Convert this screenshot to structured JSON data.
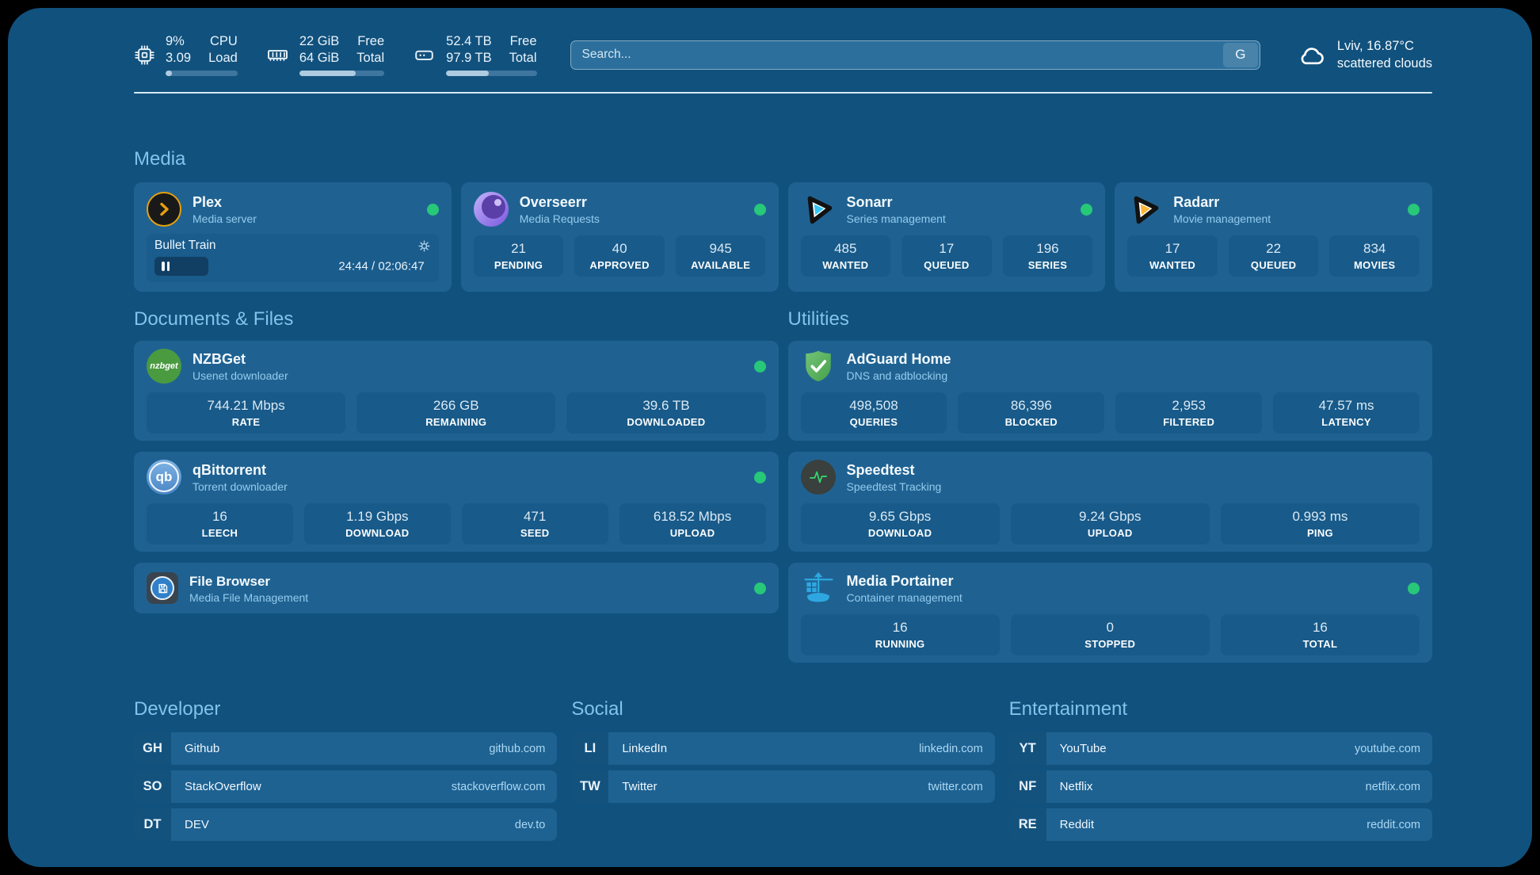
{
  "colors": {
    "background": "#11517D",
    "card": "#1F6292",
    "accent_header": "#80C3EB",
    "online_dot": "#27C878"
  },
  "topbar": {
    "stats": [
      {
        "icon": "cpu-icon",
        "value_top": "9%",
        "value_bottom": "3.09",
        "label_top": "CPU",
        "label_bottom": "Load",
        "progress": 9
      },
      {
        "icon": "memory-icon",
        "value_top": "22 GiB",
        "value_bottom": "64 GiB",
        "label_top": "Free",
        "label_bottom": "Total",
        "progress": 66
      },
      {
        "icon": "storage-icon",
        "value_top": "52.4 TB",
        "value_bottom": "97.9 TB",
        "label_top": "Free",
        "label_bottom": "Total",
        "progress": 47
      }
    ],
    "search": {
      "placeholder": "Search...",
      "provider_button": "G"
    },
    "weather": {
      "location": "Lviv, 16.87°C",
      "condition": "scattered clouds"
    }
  },
  "media": {
    "section_title": "Media",
    "plex": {
      "title": "Plex",
      "subtitle": "Media server",
      "online": true,
      "now_playing": {
        "title": "Bullet Train",
        "time_display": "24:44 / 02:06:47",
        "progress": 19.5
      }
    },
    "overseerr": {
      "title": "Overseerr",
      "subtitle": "Media Requests",
      "online": true,
      "stats": [
        {
          "value": "21",
          "label": "PENDING"
        },
        {
          "value": "40",
          "label": "APPROVED"
        },
        {
          "value": "945",
          "label": "AVAILABLE"
        }
      ]
    },
    "sonarr": {
      "title": "Sonarr",
      "subtitle": "Series management",
      "online": true,
      "stats": [
        {
          "value": "485",
          "label": "WANTED"
        },
        {
          "value": "17",
          "label": "QUEUED"
        },
        {
          "value": "196",
          "label": "SERIES"
        }
      ]
    },
    "radarr": {
      "title": "Radarr",
      "subtitle": "Movie management",
      "online": true,
      "stats": [
        {
          "value": "17",
          "label": "WANTED"
        },
        {
          "value": "22",
          "label": "QUEUED"
        },
        {
          "value": "834",
          "label": "MOVIES"
        }
      ]
    }
  },
  "documents": {
    "section_title": "Documents & Files",
    "nzbget": {
      "title": "NZBGet",
      "subtitle": "Usenet downloader",
      "icon_text": "nzbget",
      "online": true,
      "stats": [
        {
          "value": "744.21 Mbps",
          "label": "RATE"
        },
        {
          "value": "266 GB",
          "label": "REMAINING"
        },
        {
          "value": "39.6 TB",
          "label": "DOWNLOADED"
        }
      ]
    },
    "qbittorrent": {
      "title": "qBittorrent",
      "subtitle": "Torrent downloader",
      "icon_text": "qb",
      "online": true,
      "stats": [
        {
          "value": "16",
          "label": "LEECH"
        },
        {
          "value": "1.19 Gbps",
          "label": "DOWNLOAD"
        },
        {
          "value": "471",
          "label": "SEED"
        },
        {
          "value": "618.52 Mbps",
          "label": "UPLOAD"
        }
      ]
    },
    "filebrowser": {
      "title": "File Browser",
      "subtitle": "Media File Management",
      "online": true
    }
  },
  "utilities": {
    "section_title": "Utilities",
    "adguard": {
      "title": "AdGuard Home",
      "subtitle": "DNS and adblocking",
      "stats": [
        {
          "value": "498,508",
          "label": "QUERIES"
        },
        {
          "value": "86,396",
          "label": "BLOCKED"
        },
        {
          "value": "2,953",
          "label": "FILTERED"
        },
        {
          "value": "47.57 ms",
          "label": "LATENCY"
        }
      ]
    },
    "speedtest": {
      "title": "Speedtest",
      "subtitle": "Speedtest Tracking",
      "stats": [
        {
          "value": "9.65 Gbps",
          "label": "DOWNLOAD"
        },
        {
          "value": "9.24 Gbps",
          "label": "UPLOAD"
        },
        {
          "value": "0.993 ms",
          "label": "PING"
        }
      ]
    },
    "portainer": {
      "title": "Media Portainer",
      "subtitle": "Container management",
      "online": true,
      "stats": [
        {
          "value": "16",
          "label": "RUNNING"
        },
        {
          "value": "0",
          "label": "STOPPED"
        },
        {
          "value": "16",
          "label": "TOTAL"
        }
      ]
    }
  },
  "bookmarks": [
    {
      "title": "Developer",
      "links": [
        {
          "abbr": "GH",
          "name": "Github",
          "url": "github.com"
        },
        {
          "abbr": "SO",
          "name": "StackOverflow",
          "url": "stackoverflow.com"
        },
        {
          "abbr": "DT",
          "name": "DEV",
          "url": "dev.to"
        }
      ]
    },
    {
      "title": "Social",
      "links": [
        {
          "abbr": "LI",
          "name": "LinkedIn",
          "url": "linkedin.com"
        },
        {
          "abbr": "TW",
          "name": "Twitter",
          "url": "twitter.com"
        }
      ]
    },
    {
      "title": "Entertainment",
      "links": [
        {
          "abbr": "YT",
          "name": "YouTube",
          "url": "youtube.com"
        },
        {
          "abbr": "NF",
          "name": "Netflix",
          "url": "netflix.com"
        },
        {
          "abbr": "RE",
          "name": "Reddit",
          "url": "reddit.com"
        }
      ]
    }
  ]
}
